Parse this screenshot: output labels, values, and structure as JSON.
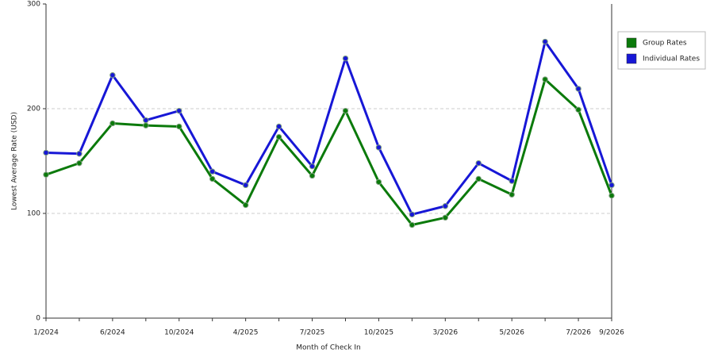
{
  "chart_data": {
    "type": "line",
    "x_label": "Month of Check In",
    "y_label": "Lowest Average Rate (USD)",
    "categories": [
      "1/2024",
      null,
      "6/2024",
      null,
      "10/2024",
      null,
      "4/2025",
      null,
      "7/2025",
      null,
      "10/2025",
      null,
      "3/2026",
      null,
      "5/2026",
      null,
      "7/2026",
      "9/2026"
    ],
    "series": [
      {
        "name": "Group Rates",
        "color": "#0b7a0b",
        "values": [
          137,
          148,
          186,
          184,
          183,
          133,
          108,
          173,
          136,
          198,
          130,
          89,
          96,
          133,
          118,
          228,
          199,
          117
        ]
      },
      {
        "name": "Individual Rates",
        "color": "#1717d6",
        "values": [
          158,
          157,
          232,
          189,
          198,
          140,
          127,
          183,
          145,
          248,
          163,
          99,
          107,
          148,
          131,
          264,
          219,
          127
        ]
      }
    ],
    "ylim": [
      0,
      300
    ],
    "yticks": [
      0,
      100,
      200,
      300
    ],
    "grid": true,
    "legend": "right"
  }
}
